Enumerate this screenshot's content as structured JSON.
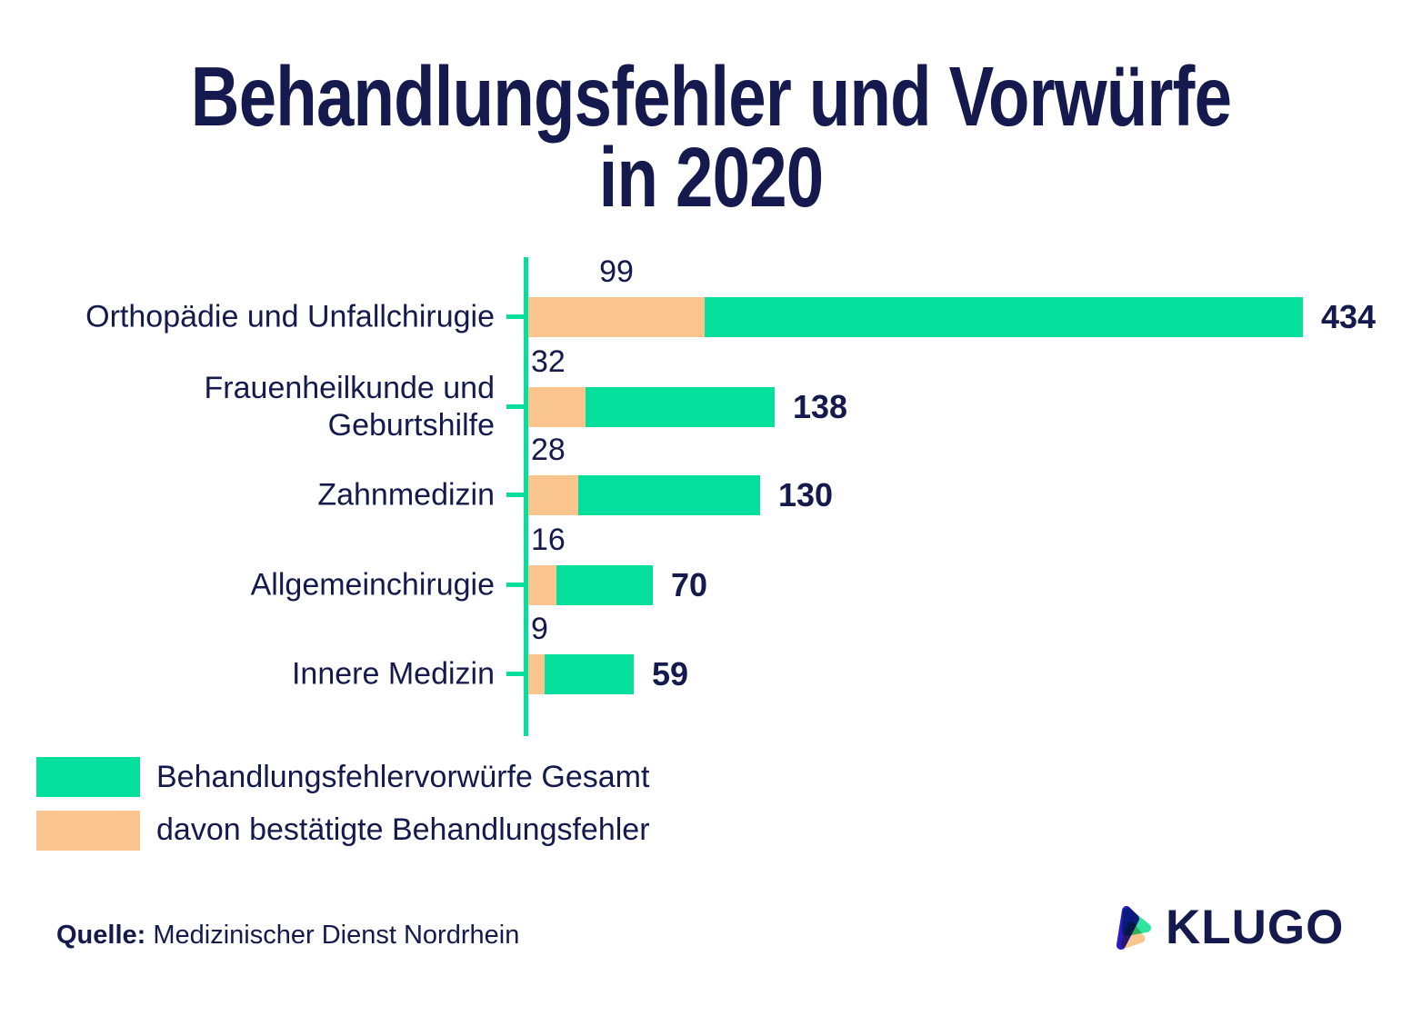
{
  "title": {
    "line1": "Behandlungsfehler und Vorwürfe",
    "line2": "in 2020"
  },
  "chart_data": {
    "type": "bar",
    "orientation": "horizontal",
    "title": "Behandlungsfehler und Vorwürfe in 2020",
    "categories": [
      "Orthopädie und Unfallchirugie",
      "Frauenheilkunde und Geburtshilfe",
      "Zahnmedizin",
      "Allgemeinchirugie",
      "Innere Medizin"
    ],
    "category_label_lines": [
      [
        "Orthopädie und Unfallchirugie"
      ],
      [
        "Frauenheilkunde und",
        "Geburtshilfe"
      ],
      [
        "Zahnmedizin"
      ],
      [
        "Allgemeinchirugie"
      ],
      [
        "Innere Medizin"
      ]
    ],
    "series": [
      {
        "name": "Behandlungsfehlervorwürfe Gesamt",
        "color": "#05DF9C",
        "values": [
          434,
          138,
          130,
          70,
          59
        ]
      },
      {
        "name": "davon bestätigte Behandlungsfehler",
        "color": "#F9C48E",
        "values": [
          99,
          32,
          28,
          16,
          9
        ]
      }
    ],
    "xlim": [
      0,
      434
    ],
    "grid": false,
    "legend_position": "bottom-left",
    "axis_color": "#05DF9C",
    "value_label_color": "#141A4D"
  },
  "legend": {
    "items": [
      {
        "label": "Behandlungsfehlervorwürfe Gesamt",
        "color": "#05DF9C"
      },
      {
        "label": "davon bestätigte Behandlungsfehler",
        "color": "#F9C48E"
      }
    ]
  },
  "source": {
    "label": "Quelle:",
    "text": "Medizinischer Dienst Nordrhein"
  },
  "logo": {
    "wordmark": "KLUGO"
  },
  "colors": {
    "navy": "#141A4D",
    "green": "#05DF9C",
    "peach": "#F9C48E",
    "background": "#FFFFFF"
  }
}
